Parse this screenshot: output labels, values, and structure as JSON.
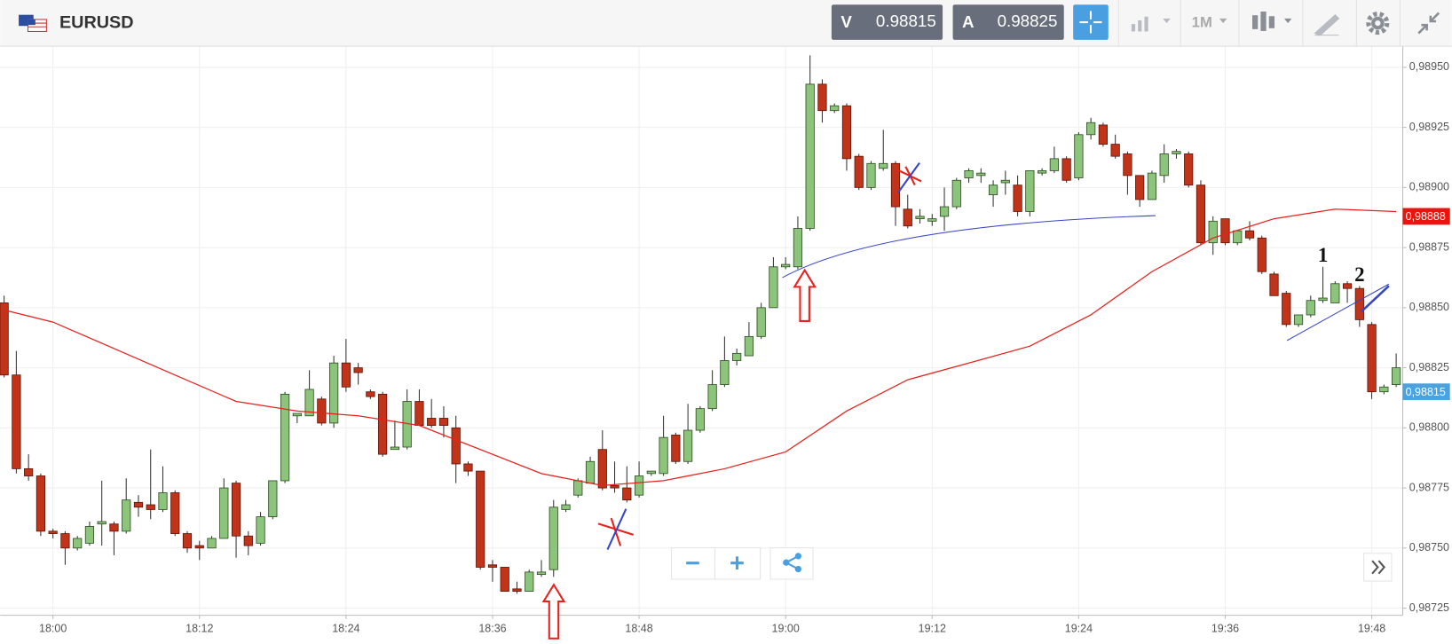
{
  "header": {
    "symbol": "EURUSD",
    "bid_label": "V",
    "bid": 0.98815,
    "ask_label": "A",
    "ask": 0.98825,
    "timeframe": "1M"
  },
  "chart_data": {
    "type": "candlestick",
    "up_color": "#8dc47b",
    "down_color": "#c23419",
    "x": [
      "17:56",
      "17:57",
      "17:58",
      "17:59",
      "18:00",
      "18:01",
      "18:02",
      "18:03",
      "18:04",
      "18:05",
      "18:06",
      "18:07",
      "18:08",
      "18:09",
      "18:10",
      "18:11",
      "18:12",
      "18:13",
      "18:14",
      "18:15",
      "18:16",
      "18:17",
      "18:18",
      "18:19",
      "18:20",
      "18:21",
      "18:22",
      "18:23",
      "18:24",
      "18:25",
      "18:26",
      "18:27",
      "18:28",
      "18:29",
      "18:30",
      "18:31",
      "18:32",
      "18:33",
      "18:34",
      "18:35",
      "18:36",
      "18:37",
      "18:38",
      "18:39",
      "18:40",
      "18:41",
      "18:42",
      "18:43",
      "18:44",
      "18:45",
      "18:46",
      "18:47",
      "18:48",
      "18:49",
      "18:50",
      "18:51",
      "18:52",
      "18:53",
      "18:54",
      "18:55",
      "18:56",
      "18:57",
      "18:58",
      "18:59",
      "19:00",
      "19:01",
      "19:02",
      "19:03",
      "19:04",
      "19:05",
      "19:06",
      "19:07",
      "19:08",
      "19:09",
      "19:10",
      "19:11",
      "19:12",
      "19:13",
      "19:14",
      "19:15",
      "19:16",
      "19:17",
      "19:18",
      "19:19",
      "19:20",
      "19:21",
      "19:22",
      "19:23",
      "19:24",
      "19:25",
      "19:26",
      "19:27",
      "19:28",
      "19:29",
      "19:30",
      "19:31",
      "19:32",
      "19:33",
      "19:34",
      "19:35",
      "19:36",
      "19:37",
      "19:38",
      "19:39",
      "19:40",
      "19:41",
      "19:42",
      "19:43",
      "19:44",
      "19:45",
      "19:46",
      "19:47",
      "19:48",
      "19:49",
      "19:50"
    ],
    "open": [
      0.98852,
      0.98822,
      0.98783,
      0.9878,
      0.98757,
      0.98756,
      0.9875,
      0.98752,
      0.9876,
      0.9876,
      0.98757,
      0.98769,
      0.98768,
      0.98766,
      0.98773,
      0.98756,
      0.98751,
      0.9875,
      0.98754,
      0.98777,
      0.98755,
      0.98752,
      0.98763,
      0.98778,
      0.98805,
      0.98805,
      0.98812,
      0.98802,
      0.98827,
      0.98825,
      0.98815,
      0.98814,
      0.98791,
      0.98792,
      0.98811,
      0.98804,
      0.98804,
      0.988,
      0.98785,
      0.98782,
      0.98743,
      0.98742,
      0.98733,
      0.98732,
      0.98739,
      0.98741,
      0.98766,
      0.98772,
      0.98777,
      0.98791,
      0.98776,
      0.98775,
      0.98772,
      0.98781,
      0.98781,
      0.98797,
      0.98786,
      0.98799,
      0.98808,
      0.98818,
      0.98828,
      0.9883,
      0.98838,
      0.9885,
      0.98867,
      0.98867,
      0.98883,
      0.98943,
      0.98932,
      0.98934,
      0.98913,
      0.989,
      0.98908,
      0.9891,
      0.98891,
      0.98887,
      0.98886,
      0.98888,
      0.98892,
      0.98904,
      0.98905,
      0.98897,
      0.98902,
      0.98901,
      0.9889,
      0.98906,
      0.98907,
      0.98912,
      0.98904,
      0.98922,
      0.98926,
      0.98918,
      0.98914,
      0.98905,
      0.98895,
      0.98905,
      0.98914,
      0.98914,
      0.98901,
      0.98877,
      0.98887,
      0.98877,
      0.98882,
      0.98879,
      0.98864,
      0.98856,
      0.98843,
      0.98847,
      0.98853,
      0.98852,
      0.9886,
      0.98858,
      0.98843,
      0.98815,
      0.98818
    ],
    "high": [
      0.98855,
      0.98832,
      0.98789,
      0.98781,
      0.98758,
      0.98757,
      0.98755,
      0.98761,
      0.98778,
      0.98761,
      0.98779,
      0.98772,
      0.98791,
      0.98784,
      0.98774,
      0.98757,
      0.98753,
      0.98755,
      0.98779,
      0.98778,
      0.98757,
      0.98765,
      0.98778,
      0.98815,
      0.98806,
      0.98824,
      0.98813,
      0.9883,
      0.98837,
      0.98827,
      0.98816,
      0.98815,
      0.98803,
      0.98816,
      0.98816,
      0.98812,
      0.98809,
      0.98805,
      0.98786,
      0.98782,
      0.98745,
      0.98742,
      0.98736,
      0.98741,
      0.98745,
      0.9877,
      0.9877,
      0.98779,
      0.98788,
      0.98799,
      0.98786,
      0.98784,
      0.98786,
      0.98782,
      0.98805,
      0.98798,
      0.9881,
      0.98809,
      0.98824,
      0.98838,
      0.98833,
      0.98844,
      0.98852,
      0.98871,
      0.98871,
      0.98888,
      0.98955,
      0.98945,
      0.98935,
      0.98935,
      0.98914,
      0.98911,
      0.98924,
      0.98911,
      0.98897,
      0.98891,
      0.98889,
      0.989,
      0.98904,
      0.98908,
      0.98908,
      0.98903,
      0.98907,
      0.98905,
      0.98907,
      0.98908,
      0.98917,
      0.98913,
      0.98923,
      0.98929,
      0.98927,
      0.98922,
      0.98915,
      0.98905,
      0.98907,
      0.98918,
      0.98916,
      0.98915,
      0.98903,
      0.98888,
      0.98887,
      0.98882,
      0.98886,
      0.9888,
      0.98865,
      0.98857,
      0.98847,
      0.98855,
      0.98867,
      0.98861,
      0.98861,
      0.98859,
      0.98844,
      0.98818,
      0.98831
    ],
    "low": [
      0.98821,
      0.98781,
      0.98778,
      0.98755,
      0.98754,
      0.98743,
      0.98749,
      0.98751,
      0.98751,
      0.98747,
      0.98756,
      0.98763,
      0.98762,
      0.98765,
      0.98755,
      0.98748,
      0.98745,
      0.9875,
      0.98754,
      0.98746,
      0.98747,
      0.98751,
      0.98762,
      0.98777,
      0.98802,
      0.98805,
      0.98801,
      0.988,
      0.98815,
      0.98818,
      0.98812,
      0.98788,
      0.98791,
      0.98791,
      0.98801,
      0.988,
      0.98796,
      0.98777,
      0.9878,
      0.98741,
      0.98736,
      0.98732,
      0.98731,
      0.98732,
      0.98738,
      0.98738,
      0.98765,
      0.98771,
      0.98777,
      0.98774,
      0.98773,
      0.98769,
      0.98771,
      0.9878,
      0.9878,
      0.98785,
      0.98785,
      0.98798,
      0.98807,
      0.98817,
      0.98826,
      0.9883,
      0.98837,
      0.9885,
      0.98866,
      0.98866,
      0.98882,
      0.98927,
      0.98931,
      0.98907,
      0.98899,
      0.98899,
      0.98907,
      0.98884,
      0.98883,
      0.98885,
      0.98884,
      0.98882,
      0.98891,
      0.98902,
      0.98902,
      0.98892,
      0.98897,
      0.98888,
      0.98888,
      0.98905,
      0.98906,
      0.98902,
      0.98903,
      0.9892,
      0.98917,
      0.98912,
      0.98897,
      0.98892,
      0.98895,
      0.98902,
      0.98912,
      0.989,
      0.98876,
      0.98872,
      0.98876,
      0.98876,
      0.98878,
      0.98864,
      0.98855,
      0.98842,
      0.98842,
      0.98846,
      0.98852,
      0.98852,
      0.98852,
      0.98842,
      0.98812,
      0.98814,
      0.98817
    ],
    "close": [
      0.98822,
      0.98783,
      0.9878,
      0.98757,
      0.98756,
      0.9875,
      0.98754,
      0.98759,
      0.98761,
      0.98757,
      0.9877,
      0.98767,
      0.98766,
      0.98773,
      0.98756,
      0.9875,
      0.9875,
      0.98754,
      0.98775,
      0.98755,
      0.98751,
      0.98763,
      0.98778,
      0.98814,
      0.98806,
      0.98816,
      0.98802,
      0.98827,
      0.98817,
      0.98823,
      0.98813,
      0.98789,
      0.98792,
      0.98811,
      0.98801,
      0.98801,
      0.98801,
      0.98785,
      0.98782,
      0.98742,
      0.98742,
      0.98732,
      0.98732,
      0.9874,
      0.9874,
      0.98767,
      0.98768,
      0.98778,
      0.98786,
      0.98775,
      0.98775,
      0.9877,
      0.9878,
      0.98782,
      0.98796,
      0.98786,
      0.98799,
      0.98808,
      0.98818,
      0.98828,
      0.98831,
      0.98838,
      0.9885,
      0.98867,
      0.98868,
      0.98883,
      0.98943,
      0.98932,
      0.98934,
      0.98912,
      0.989,
      0.9891,
      0.9891,
      0.98892,
      0.98884,
      0.98888,
      0.98887,
      0.98892,
      0.98903,
      0.98907,
      0.98906,
      0.98901,
      0.98903,
      0.9889,
      0.98907,
      0.98907,
      0.98912,
      0.98903,
      0.98922,
      0.98927,
      0.98918,
      0.98913,
      0.98905,
      0.98895,
      0.98906,
      0.98914,
      0.98915,
      0.98901,
      0.98877,
      0.98886,
      0.98877,
      0.98882,
      0.98879,
      0.98865,
      0.98855,
      0.98843,
      0.98847,
      0.98853,
      0.98854,
      0.9886,
      0.98858,
      0.98845,
      0.98815,
      0.98817,
      0.98825
    ],
    "lines": [
      {
        "color": "#e8211c",
        "x": [
          "17:56",
          "18:00",
          "18:05",
          "18:10",
          "18:15",
          "18:20",
          "18:25",
          "18:30",
          "18:35",
          "18:40",
          "18:45",
          "18:50",
          "18:55",
          "19:00",
          "19:05",
          "19:10",
          "19:15",
          "19:20",
          "19:25",
          "19:30",
          "19:35",
          "19:40",
          "19:45",
          "19:50"
        ],
        "values": [
          0.98849,
          0.98844,
          0.98833,
          0.98822,
          0.98811,
          0.98807,
          0.98805,
          0.98801,
          0.98791,
          0.98781,
          0.98776,
          0.98778,
          0.98783,
          0.9879,
          0.98807,
          0.9882,
          0.98827,
          0.98834,
          0.98847,
          0.98865,
          0.98879,
          0.98887,
          0.98891,
          0.9889
        ]
      }
    ],
    "ylim": [
      0.98722,
      0.98958
    ],
    "yticks": [
      {
        "value": 0.9895,
        "label": "0,98950"
      },
      {
        "value": 0.98925,
        "label": "0,98925"
      },
      {
        "value": 0.989,
        "label": "0,98900"
      },
      {
        "value": 0.98875,
        "label": "0,98875"
      },
      {
        "value": 0.9885,
        "label": "0,98850"
      },
      {
        "value": 0.98825,
        "label": "0,98825"
      },
      {
        "value": 0.988,
        "label": "0,98800"
      },
      {
        "value": 0.98775,
        "label": "0,98775"
      },
      {
        "value": 0.9875,
        "label": "0,98750"
      },
      {
        "value": 0.98725,
        "label": "0,98725"
      }
    ],
    "xticks": [
      "18:00",
      "18:12",
      "18:24",
      "18:36",
      "18:48",
      "19:00",
      "19:12",
      "19:24",
      "19:36",
      "19:48"
    ],
    "grid": true,
    "price_tags": [
      {
        "value": 0.98888,
        "label": "0,98888",
        "color": "#e8140e"
      },
      {
        "value": 0.98815,
        "label": "0,98815",
        "color": "#4aa3df"
      }
    ],
    "annotations": [
      {
        "text": "1",
        "x": "19:44",
        "y": 0.98871
      },
      {
        "text": "2",
        "x": "19:47",
        "y": 0.98863
      }
    ]
  }
}
